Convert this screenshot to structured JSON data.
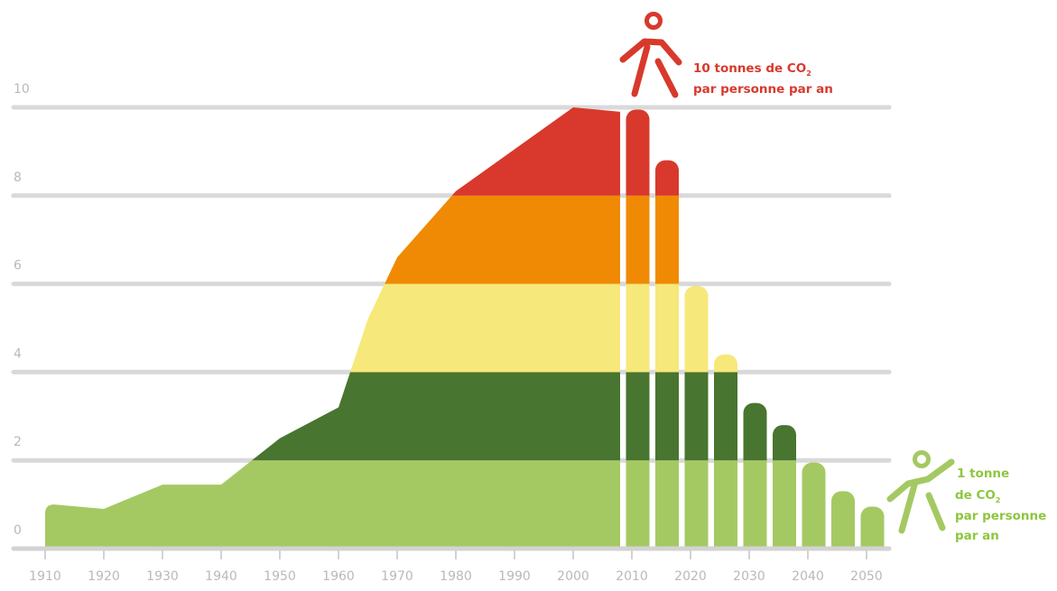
{
  "chart_data": {
    "type": "area",
    "x_ticks": [
      "1910",
      "1920",
      "1930",
      "1940",
      "1950",
      "1960",
      "1970",
      "1980",
      "1990",
      "2000",
      "2010",
      "2020",
      "2030",
      "2040",
      "2050"
    ],
    "y_ticks": [
      "0",
      "2",
      "4",
      "6",
      "8",
      "10"
    ],
    "ylim": [
      0,
      10
    ],
    "xlim": [
      1910,
      2050
    ],
    "grid": true,
    "historical": {
      "x": [
        1910,
        1920,
        1930,
        1940,
        1950,
        1960,
        1965,
        1970,
        1980,
        2000,
        2008
      ],
      "y": [
        1.0,
        0.9,
        1.45,
        1.45,
        2.5,
        3.2,
        5.2,
        6.6,
        8.1,
        10.0,
        9.9
      ]
    },
    "projection": {
      "x": [
        2011,
        2016,
        2021,
        2026,
        2031,
        2036,
        2041,
        2046,
        2051
      ],
      "y": [
        9.95,
        8.8,
        5.95,
        4.4,
        3.3,
        2.8,
        1.95,
        1.3,
        0.95
      ]
    },
    "bands": [
      {
        "min": 0,
        "max": 2,
        "color": "#a4c963"
      },
      {
        "min": 2,
        "max": 4,
        "color": "#48752f"
      },
      {
        "min": 4,
        "max": 6,
        "color": "#f6e87a"
      },
      {
        "min": 6,
        "max": 8,
        "color": "#f08a04"
      },
      {
        "min": 8,
        "max": 10,
        "color": "#d8392c"
      }
    ],
    "annotations": [
      {
        "line1": "10 tonnes de CO",
        "sub": "2",
        "line2": "par personne par an",
        "color": "#d8392c",
        "figure": "person-icon-high"
      },
      {
        "line1": "1 tonne",
        "line2a": "de CO",
        "sub": "2",
        "line3": "par personne",
        "line4": "par an",
        "color": "#8dc63f",
        "figure": "person-icon-low"
      }
    ]
  }
}
